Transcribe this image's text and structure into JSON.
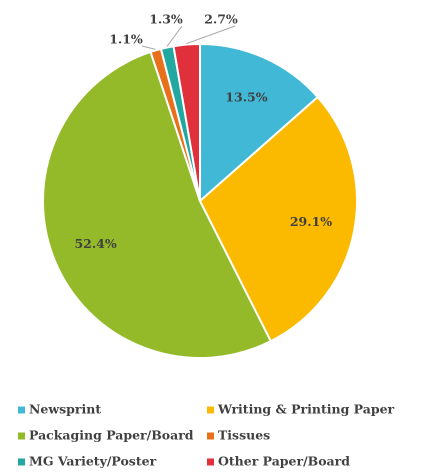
{
  "chart_data": {
    "type": "pie",
    "categories": [
      "Newsprint",
      "Writing & Printing Paper",
      "Packaging Paper/Board",
      "Tissues",
      "MG Variety/Poster",
      "Other Paper/Board"
    ],
    "values": [
      13.5,
      29.1,
      52.4,
      1.1,
      1.3,
      2.7
    ],
    "value_labels": [
      "13.5%",
      "29.1%",
      "52.4%",
      "1.1%",
      "1.3%",
      "2.7%"
    ],
    "colors": [
      "#41b8d5",
      "#fbb900",
      "#94ba2a",
      "#e8701a",
      "#22a8a0",
      "#e0303c"
    ],
    "legend": "bottom"
  }
}
